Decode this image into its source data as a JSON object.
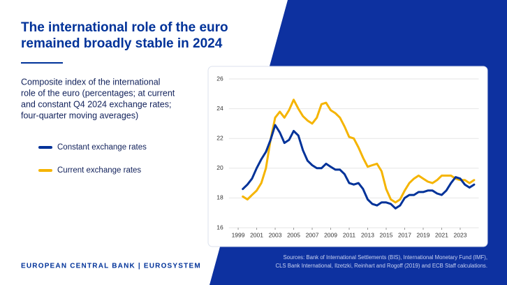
{
  "title": [
    "The international role of the euro",
    "remained broadly stable in 2024"
  ],
  "footer": "EUROPEAN CENTRAL BANK | EUROSYSTEM",
  "sources": [
    "Sources: Bank of International Settlements (BIS), International Monetary Fund (IMF),",
    "CLS Bank International, Ilzetzki, Reinhart and Rogoff (2019) and ECB Staff calculations."
  ],
  "chart_data": {
    "type": "line",
    "subtitle": [
      "Composite index of the international",
      "role of the euro (percentages; at current",
      "and constant Q4 2024 exchange rates;",
      "four-quarter moving averages)"
    ],
    "x": [
      1999.5,
      2000,
      2000.5,
      2001,
      2001.5,
      2002,
      2002.5,
      2003,
      2003.5,
      2004,
      2004.5,
      2005,
      2005.5,
      2006,
      2006.5,
      2007,
      2007.5,
      2008,
      2008.5,
      2009,
      2009.5,
      2010,
      2010.5,
      2011,
      2011.5,
      2012,
      2012.5,
      2013,
      2013.5,
      2014,
      2014.5,
      2015,
      2015.5,
      2016,
      2016.5,
      2017,
      2017.5,
      2018,
      2018.5,
      2019,
      2019.5,
      2020,
      2020.5,
      2021,
      2021.5,
      2022,
      2022.5,
      2023,
      2023.5,
      2024,
      2024.5
    ],
    "series": [
      {
        "name": "Constant exchange rates",
        "color": "#003299",
        "values": [
          18.6,
          18.9,
          19.3,
          20.0,
          20.6,
          21.1,
          21.9,
          22.9,
          22.4,
          21.7,
          21.9,
          22.5,
          22.2,
          21.2,
          20.5,
          20.2,
          20.0,
          20.0,
          20.3,
          20.1,
          19.9,
          19.9,
          19.6,
          19.0,
          18.9,
          19.0,
          18.6,
          17.9,
          17.6,
          17.5,
          17.7,
          17.7,
          17.6,
          17.3,
          17.5,
          18.0,
          18.2,
          18.2,
          18.4,
          18.4,
          18.5,
          18.5,
          18.3,
          18.2,
          18.5,
          19.0,
          19.4,
          19.3,
          18.9,
          18.7,
          18.9
        ]
      },
      {
        "name": "Current exchange rates",
        "color": "#f5b400",
        "values": [
          18.1,
          17.9,
          18.2,
          18.5,
          19.0,
          20.0,
          21.9,
          23.4,
          23.8,
          23.4,
          23.9,
          24.6,
          24.0,
          23.5,
          23.2,
          23.0,
          23.4,
          24.3,
          24.4,
          23.9,
          23.7,
          23.4,
          22.8,
          22.1,
          22.0,
          21.4,
          20.7,
          20.1,
          20.2,
          20.3,
          19.8,
          18.6,
          17.9,
          17.7,
          17.9,
          18.5,
          19.0,
          19.3,
          19.5,
          19.3,
          19.1,
          19.0,
          19.2,
          19.5,
          19.5,
          19.5,
          19.3,
          19.2,
          19.2,
          19.0,
          19.2
        ]
      }
    ],
    "xlim": [
      1998,
      2025
    ],
    "xticks": [
      1999,
      2001,
      2003,
      2005,
      2007,
      2009,
      2011,
      2013,
      2015,
      2017,
      2019,
      2021,
      2023
    ],
    "ylim": [
      16,
      26
    ],
    "yticks": [
      16,
      18,
      20,
      22,
      24,
      26
    ],
    "grid": true
  }
}
